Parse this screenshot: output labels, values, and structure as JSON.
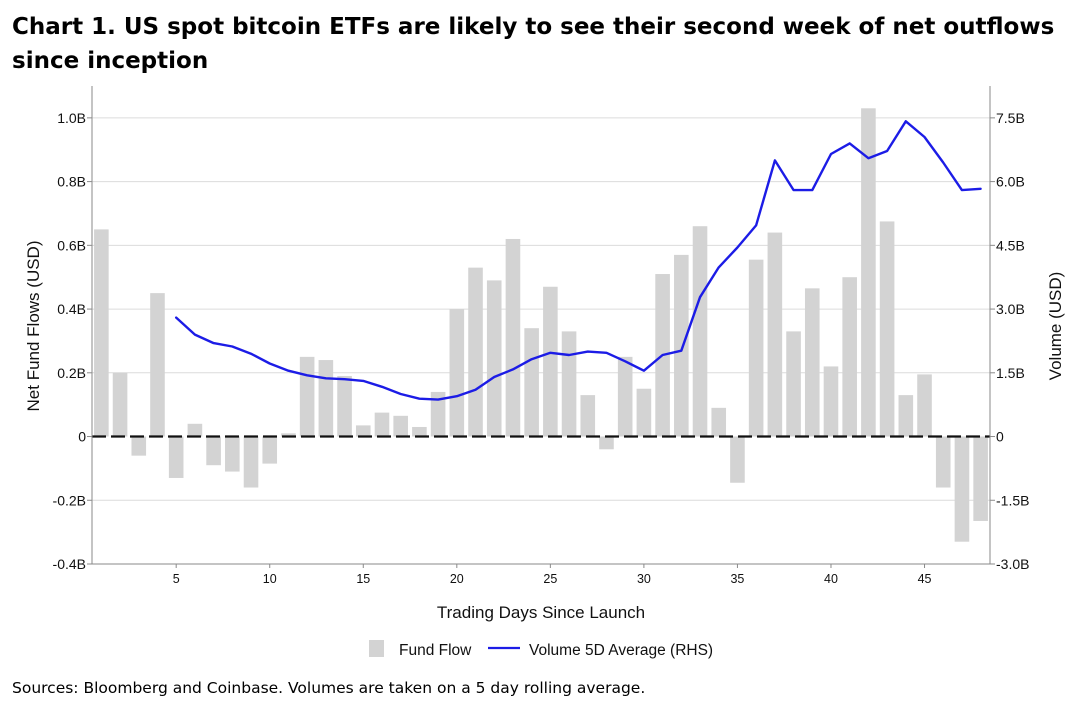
{
  "title": "Chart 1. US spot bitcoin ETFs are likely to see their second week of net outflows since inception",
  "source": "Sources: Bloomberg and Coinbase. Volumes are taken on a 5 day rolling average.",
  "chart_data": {
    "type": "bar+line",
    "xlabel": "Trading Days Since Launch",
    "ylabel": "Net Fund Flows (USD)",
    "ylabel_right": "Volume (USD)",
    "xlim": [
      0.5,
      48.5
    ],
    "ylim": [
      -0.4,
      1.1
    ],
    "ylim_right": [
      -3.0,
      8.25
    ],
    "x_ticks": [
      5,
      10,
      15,
      20,
      25,
      30,
      35,
      40,
      45
    ],
    "y_ticks": [
      {
        "value": 1.0,
        "label": "1.0B"
      },
      {
        "value": 0.8,
        "label": "0.8B"
      },
      {
        "value": 0.6,
        "label": "0.6B"
      },
      {
        "value": 0.4,
        "label": "0.4B"
      },
      {
        "value": 0.2,
        "label": "0.2B"
      },
      {
        "value": 0,
        "label": "0"
      },
      {
        "value": -0.2,
        "label": "-0.2B"
      },
      {
        "value": -0.4,
        "label": "-0.4B"
      }
    ],
    "y_ticks_right": [
      {
        "value": 7.5,
        "label": "7.5B"
      },
      {
        "value": 6.0,
        "label": "6.0B"
      },
      {
        "value": 4.5,
        "label": "4.5B"
      },
      {
        "value": 3.0,
        "label": "3.0B"
      },
      {
        "value": 1.5,
        "label": "1.5B"
      },
      {
        "value": 0,
        "label": "0"
      },
      {
        "value": -1.5,
        "label": "-1.5B"
      },
      {
        "value": -3.0,
        "label": "-3.0B"
      }
    ],
    "series": [
      {
        "name": "Fund Flow",
        "type": "bar",
        "axis": "left",
        "color": "#d3d3d3",
        "x": [
          1,
          2,
          3,
          4,
          5,
          6,
          7,
          8,
          9,
          10,
          11,
          12,
          13,
          14,
          15,
          16,
          17,
          18,
          19,
          20,
          21,
          22,
          23,
          24,
          25,
          26,
          27,
          28,
          29,
          30,
          31,
          32,
          33,
          34,
          35,
          36,
          37,
          38,
          39,
          40,
          41,
          42,
          43,
          44,
          45,
          46,
          47,
          48
        ],
        "values": [
          0.65,
          0.2,
          -0.06,
          0.45,
          -0.13,
          0.04,
          -0.09,
          -0.11,
          -0.16,
          -0.085,
          0.01,
          0.25,
          0.24,
          0.19,
          0.035,
          0.075,
          0.065,
          0.03,
          0.14,
          0.4,
          0.53,
          0.49,
          0.62,
          0.34,
          0.47,
          0.33,
          0.13,
          -0.04,
          0.25,
          0.15,
          0.51,
          0.57,
          0.66,
          0.09,
          -0.145,
          0.555,
          0.64,
          0.33,
          0.465,
          0.22,
          0.5,
          1.03,
          0.675,
          0.13,
          0.195,
          -0.16,
          -0.33,
          -0.265
        ]
      },
      {
        "name": "Volume 5D Average (RHS)",
        "type": "line",
        "axis": "right",
        "color": "#1c1ce6",
        "x": [
          5,
          6,
          7,
          8,
          9,
          10,
          11,
          12,
          13,
          14,
          15,
          16,
          17,
          18,
          19,
          20,
          21,
          22,
          23,
          24,
          25,
          26,
          27,
          28,
          29,
          30,
          31,
          32,
          33,
          34,
          35,
          36,
          37,
          38,
          39,
          40,
          41,
          42,
          43,
          44,
          45,
          46,
          47,
          48
        ],
        "values": [
          2.8,
          2.4,
          2.2,
          2.12,
          1.95,
          1.72,
          1.55,
          1.44,
          1.37,
          1.35,
          1.31,
          1.17,
          1.0,
          0.89,
          0.87,
          0.95,
          1.1,
          1.4,
          1.58,
          1.82,
          1.97,
          1.92,
          2.0,
          1.97,
          1.77,
          1.55,
          1.92,
          2.02,
          3.28,
          3.98,
          4.45,
          4.97,
          6.5,
          5.8,
          5.8,
          6.65,
          6.9,
          6.55,
          6.72,
          7.42,
          7.05,
          6.45,
          5.8,
          5.83
        ]
      }
    ],
    "legend": {
      "position": "bottom",
      "items": [
        "Fund Flow",
        "Volume 5D Average (RHS)"
      ]
    }
  }
}
